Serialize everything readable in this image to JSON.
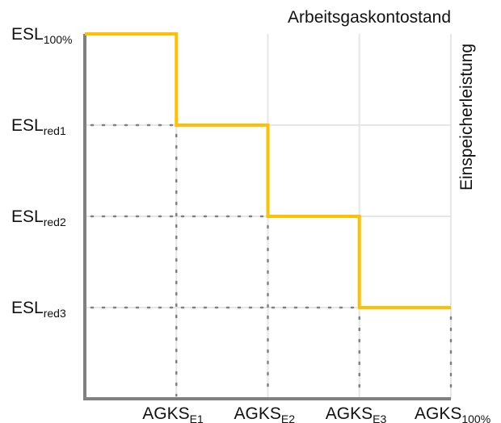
{
  "chart_data": {
    "type": "line",
    "step": true,
    "title": "",
    "xlabel": "Arbeitsgaskontostand",
    "ylabel": "Einspeicherleistung",
    "x_ticks": [
      {
        "main": "AGKS",
        "sub": "E1"
      },
      {
        "main": "AGKS",
        "sub": "E2"
      },
      {
        "main": "AGKS",
        "sub": "E3"
      },
      {
        "main": "AGKS",
        "sub": "100%"
      }
    ],
    "y_ticks": [
      {
        "main": "ESL",
        "sub": "100%"
      },
      {
        "main": "ESL",
        "sub": "red1"
      },
      {
        "main": "ESL",
        "sub": "red2"
      },
      {
        "main": "ESL",
        "sub": "red3"
      }
    ],
    "series": [
      {
        "x": [
          0,
          1,
          1,
          2,
          2,
          3,
          3,
          4
        ],
        "y": [
          4,
          4,
          3,
          3,
          2,
          2,
          1,
          1
        ]
      }
    ],
    "xlim": [
      0,
      4
    ],
    "ylim": [
      0,
      4
    ],
    "grid": true,
    "colors": {
      "line": "#FFC000",
      "axis": "#808080",
      "grid": "#E6E6E6",
      "guides": "#808080"
    }
  }
}
